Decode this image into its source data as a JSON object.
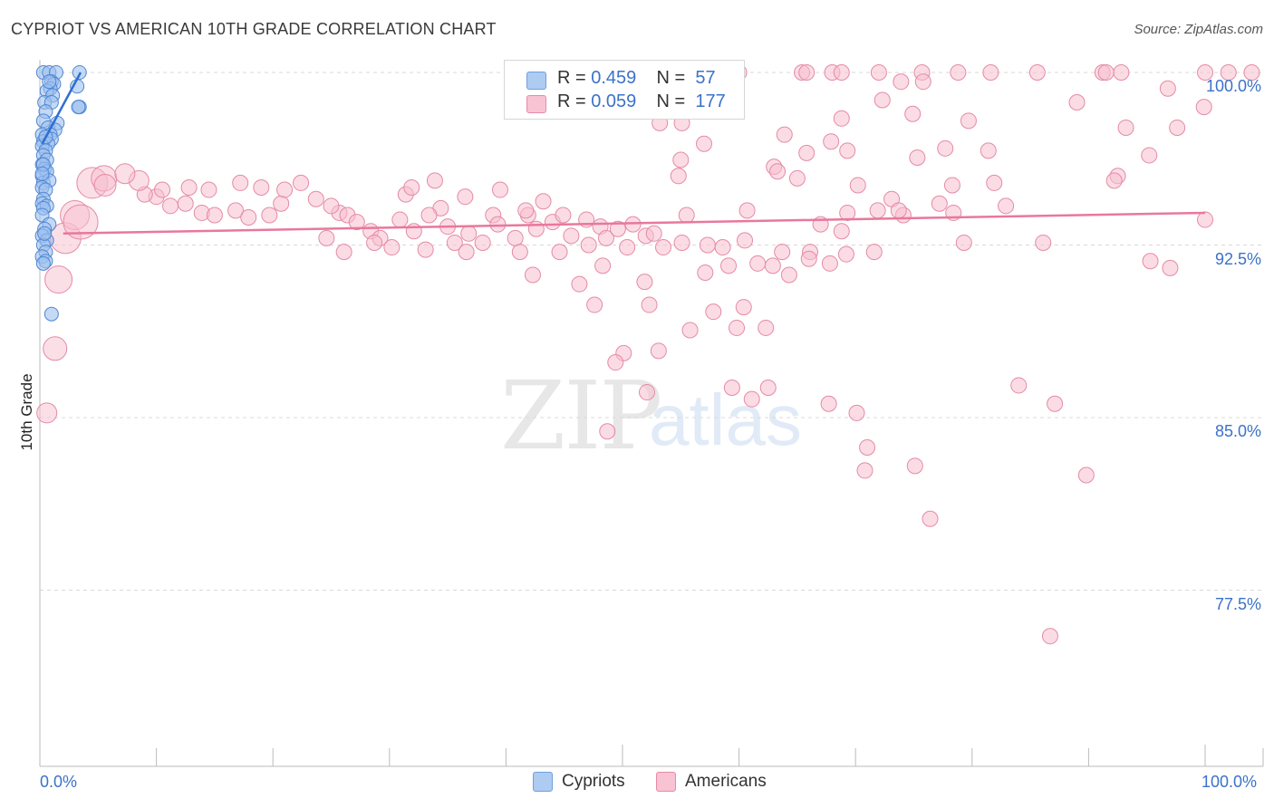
{
  "header": {
    "title": "CYPRIOT VS AMERICAN 10TH GRADE CORRELATION CHART",
    "source": "Source: ZipAtlas.com"
  },
  "watermark": {
    "zip": "ZIP",
    "atlas": "atlas"
  },
  "legend": {
    "r_label": "R =",
    "n_label": "N =",
    "cypriots": {
      "r": "0.459",
      "n": "57",
      "color": "#aecbf2",
      "border": "#6f9fdc"
    },
    "americans": {
      "r": "0.059",
      "n": "177",
      "color": "#f8c3d3",
      "border": "#e98aa8"
    }
  },
  "bottom_legend": {
    "cypriots": "Cypriots",
    "americans": "Americans"
  },
  "colors": {
    "blue_fill": "#9dc0ee",
    "blue_stroke": "#4f86d4",
    "blue_line": "#2e6fd0",
    "pink_fill": "#f7bfd0",
    "pink_stroke": "#e58aa7",
    "pink_line": "#e8789d",
    "grid": "#d9d9d9",
    "axis_text": "#3b72c9"
  },
  "chart_data": {
    "type": "scatter",
    "title": "CYPRIOT VS AMERICAN 10TH GRADE CORRELATION CHART",
    "xlabel": "",
    "ylabel": "10th Grade",
    "xlim": [
      0,
      100
    ],
    "ylim": [
      70.5,
      100.6
    ],
    "x_tick_labels": [
      "0.0%",
      "100.0%"
    ],
    "y_ticks": [
      100.0,
      92.5,
      85.0,
      77.5
    ],
    "y_tick_labels": [
      "100.0%",
      "92.5%",
      "85.0%",
      "77.5%"
    ],
    "grid": true,
    "series": [
      {
        "name": "Cypriots",
        "r": 0.459,
        "n": 57,
        "trend": {
          "x": [
            0.2,
            3.5
          ],
          "y": [
            96.9,
            100.0
          ]
        },
        "points": [
          [
            0.3,
            100.0
          ],
          [
            0.8,
            100.0
          ],
          [
            1.4,
            100.0
          ],
          [
            3.4,
            100.0
          ],
          [
            1.0,
            99.6
          ],
          [
            1.2,
            99.5
          ],
          [
            0.9,
            99.3
          ],
          [
            3.2,
            99.4
          ],
          [
            0.6,
            99.2
          ],
          [
            1.1,
            99.0
          ],
          [
            0.4,
            98.7
          ],
          [
            1.0,
            98.7
          ],
          [
            3.4,
            98.5
          ],
          [
            3.3,
            98.5
          ],
          [
            0.5,
            98.3
          ],
          [
            0.3,
            97.9
          ],
          [
            1.5,
            97.8
          ],
          [
            0.7,
            97.6
          ],
          [
            1.3,
            97.5
          ],
          [
            0.2,
            97.3
          ],
          [
            0.9,
            97.3
          ],
          [
            0.5,
            97.2
          ],
          [
            1.0,
            97.1
          ],
          [
            0.3,
            97.0
          ],
          [
            0.7,
            96.9
          ],
          [
            0.2,
            96.8
          ],
          [
            0.5,
            96.6
          ],
          [
            0.3,
            96.4
          ],
          [
            0.6,
            96.2
          ],
          [
            0.2,
            96.0
          ],
          [
            0.4,
            95.8
          ],
          [
            0.6,
            95.7
          ],
          [
            0.2,
            95.5
          ],
          [
            0.3,
            95.2
          ],
          [
            0.8,
            95.3
          ],
          [
            0.2,
            95.0
          ],
          [
            0.5,
            94.9
          ],
          [
            0.3,
            94.5
          ],
          [
            0.2,
            94.3
          ],
          [
            0.6,
            94.2
          ],
          [
            0.3,
            94.1
          ],
          [
            0.2,
            93.8
          ],
          [
            0.8,
            93.4
          ],
          [
            0.4,
            93.2
          ],
          [
            0.2,
            92.9
          ],
          [
            0.6,
            92.7
          ],
          [
            0.3,
            92.5
          ],
          [
            0.5,
            92.2
          ],
          [
            0.2,
            92.0
          ],
          [
            0.5,
            91.8
          ],
          [
            0.3,
            91.7
          ],
          [
            1.0,
            89.5
          ],
          [
            0.4,
            93.0
          ],
          [
            0.3,
            96.0
          ],
          [
            0.8,
            99.6
          ],
          [
            0.5,
            97.2
          ],
          [
            0.2,
            95.6
          ]
        ]
      },
      {
        "name": "Americans",
        "r": 0.059,
        "n": 177,
        "trend": {
          "x": [
            2,
            100
          ],
          "y": [
            93.0,
            93.9
          ]
        },
        "big_points": [
          [
            4.5,
            95.2,
            30
          ],
          [
            5.5,
            95.4,
            24
          ],
          [
            2.2,
            92.8,
            30
          ],
          [
            3.0,
            93.8,
            28
          ],
          [
            3.5,
            93.5,
            34
          ],
          [
            1.6,
            91.0,
            26
          ],
          [
            1.3,
            88.0,
            22
          ],
          [
            0.6,
            85.2,
            18
          ],
          [
            5.6,
            95.1,
            20
          ],
          [
            8.5,
            95.3,
            18
          ],
          [
            7.3,
            95.6,
            18
          ]
        ],
        "points": [
          [
            59.7,
            100.0
          ],
          [
            60.0,
            100.0
          ],
          [
            65.4,
            100.0
          ],
          [
            65.8,
            100.0
          ],
          [
            68.0,
            100.0
          ],
          [
            68.8,
            100.0
          ],
          [
            72.0,
            100.0
          ],
          [
            75.7,
            100.0
          ],
          [
            78.8,
            100.0
          ],
          [
            81.6,
            100.0
          ],
          [
            85.6,
            100.0
          ],
          [
            91.2,
            100.0
          ],
          [
            91.5,
            100.0
          ],
          [
            92.8,
            100.0
          ],
          [
            100.0,
            100.0
          ],
          [
            102.0,
            100.0
          ],
          [
            104.0,
            100.0
          ],
          [
            73.9,
            99.6
          ],
          [
            75.8,
            99.6
          ],
          [
            89.0,
            98.7
          ],
          [
            96.8,
            99.3
          ],
          [
            72.3,
            98.8
          ],
          [
            74.9,
            98.2
          ],
          [
            68.8,
            98.0
          ],
          [
            53.2,
            97.8
          ],
          [
            55.1,
            97.8
          ],
          [
            79.7,
            97.9
          ],
          [
            93.2,
            97.6
          ],
          [
            63.9,
            97.3
          ],
          [
            67.9,
            97.0
          ],
          [
            69.3,
            96.6
          ],
          [
            75.3,
            96.3
          ],
          [
            77.7,
            96.7
          ],
          [
            81.4,
            96.6
          ],
          [
            65.8,
            96.5
          ],
          [
            63.0,
            95.9
          ],
          [
            54.8,
            95.5
          ],
          [
            92.5,
            95.5
          ],
          [
            92.2,
            95.3
          ],
          [
            22.4,
            95.2
          ],
          [
            31.4,
            94.7
          ],
          [
            43.2,
            94.4
          ],
          [
            25.7,
            93.9
          ],
          [
            34.4,
            94.1
          ],
          [
            38.9,
            93.8
          ],
          [
            41.9,
            93.8
          ],
          [
            48.1,
            93.3
          ],
          [
            50.9,
            93.4
          ],
          [
            55.5,
            93.8
          ],
          [
            60.7,
            94.0
          ],
          [
            67.0,
            93.4
          ],
          [
            69.3,
            93.9
          ],
          [
            74.1,
            93.8
          ],
          [
            77.2,
            94.3
          ],
          [
            78.4,
            93.9
          ],
          [
            68.8,
            93.1
          ],
          [
            100.0,
            93.6
          ],
          [
            10.0,
            94.6
          ],
          [
            11.2,
            94.2
          ],
          [
            12.5,
            94.3
          ],
          [
            13.9,
            93.9
          ],
          [
            15.0,
            93.8
          ],
          [
            16.8,
            94.0
          ],
          [
            17.9,
            93.7
          ],
          [
            19.7,
            93.8
          ],
          [
            20.7,
            94.3
          ],
          [
            23.7,
            94.5
          ],
          [
            25.0,
            94.2
          ],
          [
            26.4,
            93.8
          ],
          [
            27.2,
            93.5
          ],
          [
            28.4,
            93.1
          ],
          [
            29.2,
            92.8
          ],
          [
            30.9,
            93.6
          ],
          [
            32.1,
            93.1
          ],
          [
            33.4,
            93.8
          ],
          [
            35.0,
            93.3
          ],
          [
            36.8,
            93.0
          ],
          [
            39.3,
            93.4
          ],
          [
            40.8,
            92.8
          ],
          [
            42.6,
            93.2
          ],
          [
            44.0,
            93.5
          ],
          [
            45.6,
            92.9
          ],
          [
            47.1,
            92.5
          ],
          [
            48.6,
            92.8
          ],
          [
            50.4,
            92.4
          ],
          [
            52.0,
            92.9
          ],
          [
            53.5,
            92.4
          ],
          [
            55.1,
            92.6
          ],
          [
            57.3,
            92.5
          ],
          [
            58.6,
            92.4
          ],
          [
            60.5,
            92.7
          ],
          [
            63.7,
            92.2
          ],
          [
            66.1,
            92.2
          ],
          [
            69.2,
            92.1
          ],
          [
            71.6,
            92.2
          ],
          [
            79.3,
            92.6
          ],
          [
            24.6,
            92.8
          ],
          [
            26.1,
            92.2
          ],
          [
            28.7,
            92.6
          ],
          [
            30.2,
            92.4
          ],
          [
            33.1,
            92.3
          ],
          [
            35.6,
            92.6
          ],
          [
            36.6,
            92.2
          ],
          [
            38.0,
            92.6
          ],
          [
            41.2,
            92.2
          ],
          [
            42.3,
            91.2
          ],
          [
            44.6,
            92.2
          ],
          [
            46.3,
            90.8
          ],
          [
            48.3,
            91.6
          ],
          [
            47.6,
            89.9
          ],
          [
            51.9,
            90.9
          ],
          [
            52.3,
            89.9
          ],
          [
            57.1,
            91.3
          ],
          [
            59.1,
            91.6
          ],
          [
            61.6,
            91.7
          ],
          [
            62.9,
            91.6
          ],
          [
            64.3,
            91.2
          ],
          [
            66.0,
            91.9
          ],
          [
            67.8,
            91.7
          ],
          [
            60.4,
            89.8
          ],
          [
            57.8,
            89.6
          ],
          [
            59.8,
            88.9
          ],
          [
            62.3,
            88.9
          ],
          [
            55.8,
            88.8
          ],
          [
            53.1,
            87.9
          ],
          [
            50.1,
            87.8
          ],
          [
            49.4,
            87.4
          ],
          [
            48.7,
            84.4
          ],
          [
            59.4,
            86.3
          ],
          [
            62.5,
            86.3
          ],
          [
            52.1,
            86.1
          ],
          [
            61.1,
            85.8
          ],
          [
            67.7,
            85.6
          ],
          [
            70.1,
            85.2
          ],
          [
            71.0,
            83.7
          ],
          [
            70.8,
            82.7
          ],
          [
            75.1,
            82.9
          ],
          [
            76.4,
            80.6
          ],
          [
            89.8,
            82.5
          ],
          [
            84.0,
            86.4
          ],
          [
            87.1,
            85.6
          ],
          [
            86.7,
            75.5
          ],
          [
            55.0,
            96.2
          ],
          [
            57.0,
            96.9
          ],
          [
            63.3,
            95.7
          ],
          [
            65.0,
            95.4
          ],
          [
            70.2,
            95.1
          ],
          [
            73.1,
            94.5
          ],
          [
            78.3,
            95.1
          ],
          [
            81.9,
            95.2
          ],
          [
            82.9,
            94.2
          ],
          [
            86.1,
            92.6
          ],
          [
            95.3,
            91.8
          ],
          [
            97.0,
            91.5
          ],
          [
            99.9,
            98.5
          ],
          [
            97.6,
            97.6
          ],
          [
            95.2,
            96.4
          ],
          [
            71.9,
            94.0
          ],
          [
            73.7,
            94.0
          ],
          [
            31.9,
            95.0
          ],
          [
            33.9,
            95.3
          ],
          [
            17.2,
            95.2
          ],
          [
            19.0,
            95.0
          ],
          [
            21.0,
            94.9
          ],
          [
            12.8,
            95.0
          ],
          [
            14.5,
            94.9
          ],
          [
            9.0,
            94.7
          ],
          [
            10.5,
            94.9
          ],
          [
            36.5,
            94.6
          ],
          [
            39.5,
            94.9
          ],
          [
            41.7,
            94.0
          ],
          [
            44.9,
            93.8
          ],
          [
            46.9,
            93.6
          ],
          [
            49.6,
            93.2
          ],
          [
            52.7,
            93.0
          ]
        ]
      }
    ]
  }
}
